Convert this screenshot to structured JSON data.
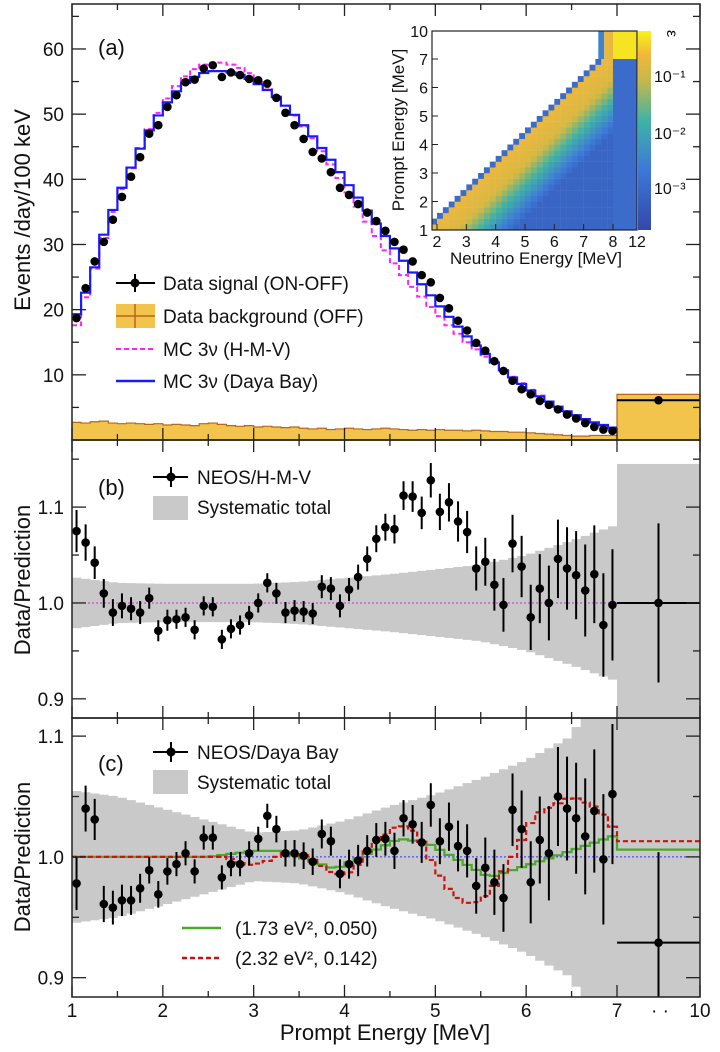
{
  "chart_data": [
    {
      "panel": "(a)",
      "type": "line",
      "ylabel": "Events /day/100 keV",
      "xlabel": "Prompt Energy [MeV]",
      "ylim": [
        0,
        66.9
      ],
      "yticks": [
        10,
        20,
        30,
        40,
        50,
        60
      ],
      "xticks": [
        1,
        2,
        3,
        4,
        5,
        6,
        7,
        10
      ],
      "x_break_marker": "· ·",
      "bins": {
        "start": 1.0,
        "width": 0.1,
        "count": 60,
        "overflow": [
          7,
          10
        ]
      },
      "legend": [
        {
          "label": "Data signal (ON-OFF)",
          "style": "points"
        },
        {
          "label": "Data background (OFF)",
          "style": "fill"
        },
        {
          "label": "MC 3ν (H-M-V)",
          "style": "dashed"
        },
        {
          "label": "MC 3ν (Daya Bay)",
          "style": "solid"
        }
      ],
      "colors": {
        "data": "#000000",
        "background_fill": "#f2c44c",
        "background_edge": "#b8661e",
        "mc_hmv": "#ff22ff",
        "mc_dayabay": "#1a1aff"
      },
      "series": [
        {
          "name": "Data signal (ON-OFF)",
          "values": [
            18.7,
            23.3,
            27.4,
            30.4,
            33.8,
            37.3,
            40.4,
            43.4,
            47.0,
            48.3,
            51.1,
            52.9,
            54.9,
            55.3,
            57.0,
            57.5,
            55.7,
            56.4,
            56.0,
            55.4,
            55.2,
            54.7,
            52.5,
            50.2,
            48.3,
            46.2,
            44.2,
            43.2,
            41.1,
            38.7,
            37.6,
            36.2,
            34.9,
            33.6,
            32.1,
            30.4,
            29.2,
            27.4,
            25.3,
            24.2,
            21.8,
            20.2,
            18.3,
            16.8,
            14.9,
            13.7,
            12.1,
            10.6,
            9.1,
            7.8,
            7.0,
            6.0,
            5.4,
            4.7,
            3.9,
            3.3,
            2.6,
            2.0,
            1.6,
            1.4
          ],
          "overflow_value": 6.1
        },
        {
          "name": "Data background (OFF)",
          "values": [
            2.7,
            2.6,
            2.8,
            2.9,
            2.6,
            2.5,
            2.6,
            2.5,
            2.4,
            2.5,
            2.3,
            2.4,
            2.3,
            2.2,
            2.5,
            2.6,
            2.4,
            2.2,
            2.1,
            2.2,
            2.0,
            2.1,
            2.0,
            1.9,
            2.0,
            1.8,
            1.7,
            1.8,
            1.6,
            1.7,
            1.8,
            1.7,
            1.6,
            1.7,
            1.8,
            1.7,
            1.6,
            1.5,
            1.6,
            1.5,
            1.6,
            1.5,
            1.5,
            1.4,
            1.5,
            1.4,
            1.3,
            1.3,
            1.2,
            1.2,
            1.1,
            1.0,
            0.9,
            0.8,
            0.7,
            0.6,
            0.6,
            0.7,
            0.7,
            0.7
          ],
          "overflow_value": 7.0
        },
        {
          "name": "MC 3ν (H-M-V)",
          "values": [
            17.6,
            21.9,
            26.3,
            31.0,
            35.0,
            38.5,
            41.7,
            44.8,
            47.7,
            50.2,
            52.4,
            54.3,
            55.8,
            56.9,
            57.6,
            57.9,
            57.9,
            57.6,
            57.1,
            56.3,
            55.3,
            54.1,
            52.7,
            51.3,
            49.8,
            48.1,
            46.3,
            44.3,
            42.3,
            40.2,
            38.0,
            35.8,
            33.5,
            31.3,
            29.1,
            27.1,
            25.3,
            23.5,
            22.0,
            20.4,
            19.0,
            17.6,
            16.3,
            15.0,
            13.9,
            12.8,
            11.8,
            10.7,
            9.7,
            8.7,
            7.7,
            6.8,
            5.9,
            5.1,
            4.4,
            3.7,
            3.1,
            2.6,
            2.2,
            1.8
          ]
        },
        {
          "name": "MC 3ν (Daya Bay)",
          "values": [
            19.3,
            22.6,
            26.5,
            31.5,
            35.3,
            38.7,
            41.8,
            44.7,
            47.5,
            49.8,
            51.8,
            53.5,
            54.8,
            55.7,
            56.3,
            56.6,
            56.6,
            56.4,
            56.0,
            55.4,
            54.6,
            53.7,
            52.6,
            51.3,
            49.9,
            48.3,
            46.6,
            44.8,
            43.0,
            41.1,
            39.1,
            37.2,
            35.2,
            33.2,
            31.3,
            29.4,
            27.5,
            25.7,
            23.9,
            22.2,
            20.5,
            18.9,
            17.4,
            15.9,
            14.5,
            13.2,
            11.9,
            10.7,
            9.6,
            8.6,
            7.6,
            6.7,
            5.9,
            5.1,
            4.4,
            3.8,
            3.2,
            2.7,
            2.3,
            1.9
          ]
        }
      ],
      "inset": {
        "type": "heatmap",
        "xlabel": "Neutrino Energy [MeV]",
        "ylabel": "Prompt Energy [MeV]",
        "xticks": [
          "2",
          "3",
          "4",
          "5",
          "6",
          "7",
          "8",
          "12"
        ],
        "yticks": [
          "1",
          "2",
          "3",
          "4",
          "5",
          "6",
          "7",
          "10"
        ],
        "colorbar_label": "ε",
        "colorbar_ticks": [
          "10⁻¹",
          "10⁻²",
          "10⁻³"
        ],
        "scale": "log"
      }
    },
    {
      "panel": "(b)",
      "type": "scatter",
      "ylabel": "Data/Prediction",
      "ylim": [
        0.88,
        1.17
      ],
      "yticks": [
        "0.9",
        "1.0",
        "1.1"
      ],
      "reference_line": 1.0,
      "reference_color": "#cc33cc",
      "band_color": "#c9c9c9",
      "legend": [
        {
          "label": "NEOS/H-M-V",
          "style": "points"
        },
        {
          "label": "Systematic total",
          "style": "band"
        }
      ],
      "series": [
        {
          "name": "NEOS/H-M-V",
          "values": [
            1.075,
            1.063,
            1.042,
            1.01,
            0.99,
            0.997,
            0.994,
            0.99,
            1.005,
            0.971,
            0.982,
            0.983,
            0.985,
            0.972,
            0.997,
            0.996,
            0.962,
            0.973,
            0.977,
            0.987,
            1.0,
            1.021,
            1.01,
            0.99,
            0.992,
            0.991,
            0.989,
            1.017,
            1.015,
            0.997,
            1.014,
            1.027,
            1.046,
            1.067,
            1.079,
            1.077,
            1.112,
            1.111,
            1.094,
            1.128,
            1.095,
            1.105,
            1.085,
            1.074,
            1.036,
            1.043,
            1.019,
            0.998,
            1.062,
            1.038,
            0.985,
            1.015,
            1.0,
            1.046,
            1.036,
            1.029,
            1.013,
            1.03,
            0.977,
            0.998
          ],
          "errors": [
            0.022,
            0.019,
            0.017,
            0.015,
            0.014,
            0.013,
            0.012,
            0.012,
            0.011,
            0.011,
            0.011,
            0.01,
            0.01,
            0.01,
            0.01,
            0.01,
            0.01,
            0.01,
            0.01,
            0.01,
            0.01,
            0.01,
            0.011,
            0.011,
            0.011,
            0.011,
            0.011,
            0.012,
            0.012,
            0.012,
            0.012,
            0.013,
            0.013,
            0.014,
            0.014,
            0.015,
            0.015,
            0.016,
            0.017,
            0.018,
            0.019,
            0.02,
            0.021,
            0.022,
            0.023,
            0.025,
            0.027,
            0.028,
            0.03,
            0.032,
            0.034,
            0.036,
            0.039,
            0.041,
            0.043,
            0.046,
            0.048,
            0.051,
            0.054,
            0.058
          ],
          "overflow_value": 1.0,
          "overflow_error": 0.083
        },
        {
          "name": "Systematic total",
          "half_width": [
            [
              1,
              0.027
            ],
            [
              1.5,
              0.021
            ],
            [
              2,
              0.02
            ],
            [
              3,
              0.02
            ],
            [
              3.5,
              0.022
            ],
            [
              4,
              0.026
            ],
            [
              4.5,
              0.03
            ],
            [
              5,
              0.035
            ],
            [
              5.5,
              0.04
            ],
            [
              6,
              0.05
            ],
            [
              6.5,
              0.065
            ],
            [
              6.95,
              0.08
            ]
          ],
          "overflow_half_width": 0.145
        }
      ]
    },
    {
      "panel": "(c)",
      "type": "scatter",
      "ylabel": "Data/Prediction",
      "xlabel": "Prompt Energy [MeV]",
      "ylim": [
        0.884,
        1.115
      ],
      "yticks": [
        "0.9",
        "1.0",
        "1.1"
      ],
      "xticks": [
        "1",
        "2",
        "3",
        "4",
        "5",
        "6",
        "7",
        "10"
      ],
      "reference_line": 1.0,
      "reference_color": "#3333ff",
      "band_color": "#c9c9c9",
      "legend": [
        {
          "label": "NEOS/Daya Bay",
          "style": "points"
        },
        {
          "label": "Systematic total",
          "style": "band"
        },
        {
          "label": "(1.73 eV², 0.050)",
          "style": "solid",
          "color": "#4aa82a"
        },
        {
          "label": "(2.32 eV², 0.142)",
          "style": "dashed",
          "color": "#cc1111"
        }
      ],
      "series": [
        {
          "name": "NEOS/Daya Bay",
          "values": [
            0.978,
            1.04,
            1.031,
            0.961,
            0.958,
            0.964,
            0.964,
            0.974,
            0.989,
            0.969,
            0.988,
            0.994,
            1.003,
            0.988,
            1.016,
            1.016,
            0.983,
            0.994,
            0.994,
            1.003,
            1.015,
            1.034,
            1.023,
            1.003,
            1.003,
            1.001,
            0.996,
            1.019,
            1.013,
            0.986,
            0.994,
            0.997,
            1.005,
            1.014,
            1.015,
            1.005,
            1.032,
            1.027,
            1.012,
            1.043,
            1.013,
            1.025,
            1.009,
            1.005,
            0.976,
            0.991,
            0.979,
            0.966,
            1.039,
            1.023,
            0.979,
            1.014,
            1.003,
            1.05,
            1.04,
            1.032,
            1.017,
            1.038,
            0.998,
            1.052
          ],
          "errors": [
            0.022,
            0.019,
            0.017,
            0.015,
            0.014,
            0.013,
            0.012,
            0.012,
            0.011,
            0.011,
            0.011,
            0.01,
            0.01,
            0.01,
            0.01,
            0.01,
            0.01,
            0.01,
            0.01,
            0.01,
            0.01,
            0.01,
            0.011,
            0.011,
            0.011,
            0.011,
            0.011,
            0.012,
            0.012,
            0.012,
            0.012,
            0.013,
            0.013,
            0.014,
            0.014,
            0.015,
            0.015,
            0.016,
            0.017,
            0.018,
            0.019,
            0.02,
            0.021,
            0.022,
            0.023,
            0.025,
            0.027,
            0.028,
            0.03,
            0.032,
            0.034,
            0.036,
            0.039,
            0.041,
            0.043,
            0.046,
            0.048,
            0.051,
            0.054,
            0.058
          ],
          "overflow_value": 0.929,
          "overflow_error": 0.075
        },
        {
          "name": "Systematic total",
          "half_width": [
            [
              1,
              0.055
            ],
            [
              1.5,
              0.05
            ],
            [
              2,
              0.04
            ],
            [
              2.5,
              0.03
            ],
            [
              3,
              0.02
            ],
            [
              3.5,
              0.022
            ],
            [
              4,
              0.03
            ],
            [
              4.5,
              0.042
            ],
            [
              5,
              0.052
            ],
            [
              5.5,
              0.065
            ],
            [
              6,
              0.08
            ],
            [
              6.5,
              0.1
            ],
            [
              6.7,
              0.13
            ],
            [
              6.95,
              0.14
            ]
          ],
          "overflow_half_width": 0.2
        },
        {
          "name": "(1.73 eV², 0.050)",
          "curve": [
            [
              1,
              1.0
            ],
            [
              2.5,
              1.0
            ],
            [
              3.0,
              1.005
            ],
            [
              3.3,
              1.005
            ],
            [
              3.9,
              0.99
            ],
            [
              4.6,
              1.015
            ],
            [
              4.9,
              1.012
            ],
            [
              5.6,
              0.983
            ],
            [
              6.3,
              1.0
            ],
            [
              6.95,
              1.017
            ]
          ],
          "overflow_value": 1.006
        },
        {
          "name": "(2.32 eV², 0.142)",
          "curve": [
            [
              1,
              1.0
            ],
            [
              2.7,
              1.0
            ],
            [
              2.9,
              0.993
            ],
            [
              3.1,
              0.995
            ],
            [
              3.4,
              1.005
            ],
            [
              3.6,
              1.0
            ],
            [
              3.9,
              0.985
            ],
            [
              4.1,
              0.988
            ],
            [
              4.3,
              1.01
            ],
            [
              4.6,
              1.027
            ],
            [
              4.8,
              1.02
            ],
            [
              5.0,
              0.99
            ],
            [
              5.2,
              0.968
            ],
            [
              5.4,
              0.96
            ],
            [
              5.6,
              0.97
            ],
            [
              5.85,
              1.0
            ],
            [
              6.1,
              1.035
            ],
            [
              6.5,
              1.05
            ],
            [
              6.8,
              1.04
            ],
            [
              6.95,
              1.025
            ]
          ],
          "overflow_value": 1.013
        }
      ]
    }
  ]
}
